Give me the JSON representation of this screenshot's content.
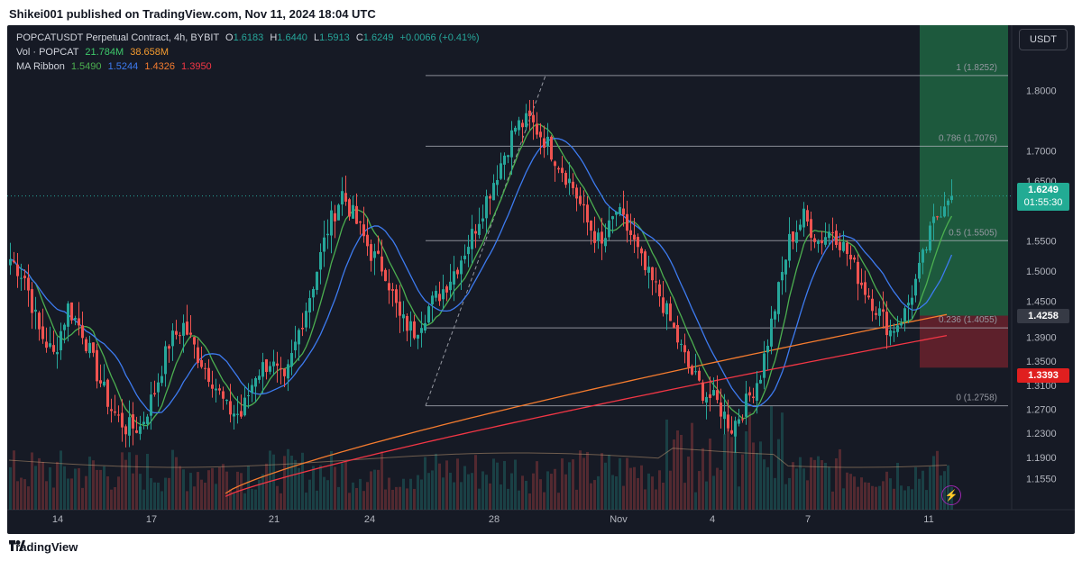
{
  "header": {
    "published_text": "Shikei001 published on TradingView.com, Nov 11, 2024 18:04 UTC"
  },
  "footer": {
    "brand": "TradingView"
  },
  "legend": {
    "symbol": "POPCATUSDT Perpetual Contract, 4h, BYBIT",
    "o_label": "O",
    "o_value": "1.6183",
    "h_label": "H",
    "h_value": "1.6440",
    "l_label": "L",
    "l_value": "1.5913",
    "c_label": "C",
    "c_value": "1.6249",
    "change": "+0.0066 (+0.41%)",
    "vol_label": "Vol · POPCAT",
    "vol_value": "21.784M",
    "vol_ma": "38.658M",
    "ma_label": "MA Ribbon",
    "ma1": "1.5490",
    "ma2": "1.5244",
    "ma3": "1.4326",
    "ma4": "1.3950"
  },
  "currency_button": "USDT",
  "last_price": {
    "value": "1.6249",
    "countdown": "01:55:30"
  },
  "badge_green_line": "1.4258",
  "badge_red_line": "1.3393",
  "colors": {
    "bg": "#161a25",
    "up": "#26a69a",
    "down": "#ef5350",
    "ma1": "#4caf50",
    "ma2": "#3d7bf0",
    "ma3": "#f57c2f",
    "ma4": "#f23645"
  },
  "chart_data": {
    "type": "candlestick",
    "timeframe": "4h",
    "ylim": [
      1.13,
      1.87
    ],
    "y_ticks": [
      "1.8000",
      "1.7000",
      "1.6500",
      "1.5500",
      "1.5000",
      "1.4500",
      "1.3900",
      "1.3500",
      "1.3100",
      "1.2700",
      "1.2300",
      "1.1900",
      "1.1550"
    ],
    "x_ticks": [
      "14",
      "17",
      "21",
      "24",
      "28",
      "Nov",
      "4",
      "7",
      "11"
    ],
    "fib_levels": [
      {
        "ratio": "1",
        "price": "1.8252"
      },
      {
        "ratio": "0.786",
        "price": "1.7076"
      },
      {
        "ratio": "0.5",
        "price": "1.5505"
      },
      {
        "ratio": "0.236",
        "price": "1.4055"
      },
      {
        "ratio": "0",
        "price": "1.2758"
      }
    ],
    "position": {
      "entry": 1.4258,
      "target": 1.87,
      "stop": 1.3393
    },
    "current_price": 1.6249,
    "price_keypoints": [
      [
        0,
        1.52
      ],
      [
        4,
        1.49
      ],
      [
        8,
        1.4
      ],
      [
        12,
        1.36
      ],
      [
        16,
        1.44
      ],
      [
        20,
        1.4
      ],
      [
        24,
        1.33
      ],
      [
        28,
        1.27
      ],
      [
        32,
        1.24
      ],
      [
        36,
        1.24
      ],
      [
        40,
        1.3
      ],
      [
        44,
        1.38
      ],
      [
        48,
        1.41
      ],
      [
        52,
        1.36
      ],
      [
        56,
        1.32
      ],
      [
        60,
        1.27
      ],
      [
        64,
        1.26
      ],
      [
        68,
        1.33
      ],
      [
        72,
        1.35
      ],
      [
        76,
        1.31
      ],
      [
        80,
        1.4
      ],
      [
        84,
        1.48
      ],
      [
        88,
        1.57
      ],
      [
        92,
        1.63
      ],
      [
        96,
        1.58
      ],
      [
        100,
        1.53
      ],
      [
        104,
        1.5
      ],
      [
        108,
        1.42
      ],
      [
        112,
        1.4
      ],
      [
        116,
        1.44
      ],
      [
        120,
        1.47
      ],
      [
        124,
        1.51
      ],
      [
        128,
        1.56
      ],
      [
        132,
        1.62
      ],
      [
        136,
        1.68
      ],
      [
        140,
        1.74
      ],
      [
        144,
        1.75
      ],
      [
        148,
        1.72
      ],
      [
        152,
        1.68
      ],
      [
        156,
        1.64
      ],
      [
        160,
        1.58
      ],
      [
        164,
        1.54
      ],
      [
        168,
        1.6
      ],
      [
        172,
        1.56
      ],
      [
        176,
        1.5
      ],
      [
        180,
        1.46
      ],
      [
        184,
        1.4
      ],
      [
        188,
        1.34
      ],
      [
        192,
        1.3
      ],
      [
        196,
        1.28
      ],
      [
        200,
        1.24
      ],
      [
        204,
        1.28
      ],
      [
        208,
        1.33
      ],
      [
        212,
        1.44
      ],
      [
        216,
        1.55
      ],
      [
        220,
        1.59
      ],
      [
        224,
        1.55
      ],
      [
        228,
        1.57
      ],
      [
        232,
        1.53
      ],
      [
        236,
        1.48
      ],
      [
        240,
        1.44
      ],
      [
        244,
        1.4
      ],
      [
        248,
        1.43
      ],
      [
        252,
        1.5
      ],
      [
        256,
        1.58
      ],
      [
        260,
        1.63
      ],
      [
        261,
        1.62
      ]
    ],
    "ma_series": [
      {
        "name": "MA1",
        "last": 1.549
      },
      {
        "name": "MA2",
        "last": 1.5244
      },
      {
        "name": "MA3",
        "last": 1.4326
      },
      {
        "name": "MA4",
        "last": 1.395
      }
    ]
  }
}
